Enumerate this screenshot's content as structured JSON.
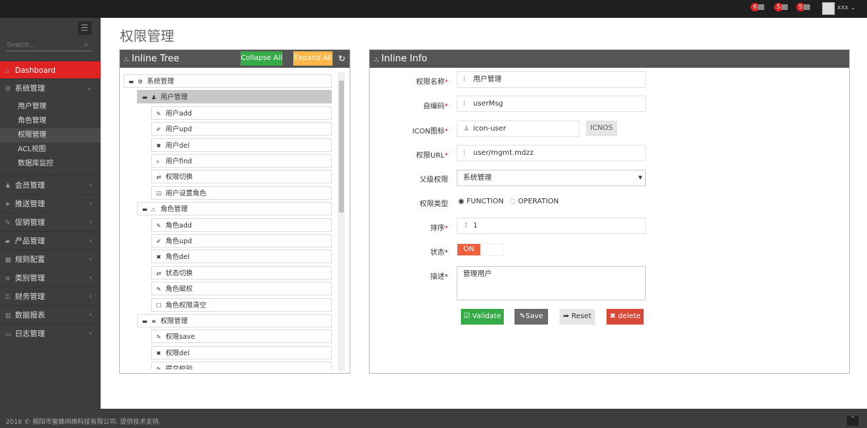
{
  "topbar": {
    "badges": [
      "6",
      "5",
      "5"
    ],
    "user": "xxx",
    "colors": {
      "badge": "#e02222"
    }
  },
  "sidebar": {
    "search_placeholder": "Search...",
    "active": "Dashboard",
    "items": [
      {
        "label": "Dashboard",
        "icon": "home-icon"
      },
      {
        "label": "系统管理",
        "icon": "cogs-icon",
        "expanded": true,
        "children": [
          "用户管理",
          "角色管理",
          "权限管理",
          "ACL视图",
          "数据库监控"
        ],
        "selected_child": "权限管理"
      },
      {
        "label": "会员管理",
        "icon": "user-icon"
      },
      {
        "label": "推送管理",
        "icon": "send-icon"
      },
      {
        "label": "促销管理",
        "icon": "tag-icon"
      },
      {
        "label": "产品管理",
        "icon": "folder-icon"
      },
      {
        "label": "规则配置",
        "icon": "table-icon"
      },
      {
        "label": "类别管理",
        "icon": "list-icon"
      },
      {
        "label": "财务管理",
        "icon": "key-icon"
      },
      {
        "label": "数据报表",
        "icon": "chart-icon"
      },
      {
        "label": "日志管理",
        "icon": "card-icon"
      }
    ]
  },
  "page_title": "权限管理",
  "tree_panel": {
    "title": "Inline Tree",
    "collapse_label": "Collapse All",
    "expand_label": "Expand All",
    "nodes": [
      {
        "label": "系统管理",
        "level": 0,
        "icon": "cogs-icon",
        "toggle": "−"
      },
      {
        "label": "用户管理",
        "level": 1,
        "icon": "user-icon",
        "toggle": "−",
        "selected": true
      },
      {
        "label": "用户add",
        "level": 2,
        "icon": "pencil-icon"
      },
      {
        "label": "用户upd",
        "level": 2,
        "icon": "edit-icon"
      },
      {
        "label": "用户del",
        "level": 2,
        "icon": "times-icon"
      },
      {
        "label": "用户find",
        "level": 2,
        "icon": "search-icon"
      },
      {
        "label": "权限切换",
        "level": 2,
        "icon": "retweet-icon"
      },
      {
        "label": "用户设置角色",
        "level": 2,
        "icon": "check-square-icon"
      },
      {
        "label": "角色管理",
        "level": 1,
        "icon": "sitemap-icon",
        "toggle": "−"
      },
      {
        "label": "角色add",
        "level": 2,
        "icon": "pencil-icon"
      },
      {
        "label": "角色upd",
        "level": 2,
        "icon": "edit-icon"
      },
      {
        "label": "角色del",
        "level": 2,
        "icon": "times-icon"
      },
      {
        "label": "状态切换",
        "level": 2,
        "icon": "retweet-icon"
      },
      {
        "label": "角色赋权",
        "level": 2,
        "icon": "pencil-icon"
      },
      {
        "label": "角色权限清空",
        "level": 2,
        "icon": "square-icon"
      },
      {
        "label": "权限管理",
        "level": 1,
        "icon": "list-icon",
        "toggle": "−"
      },
      {
        "label": "权限save",
        "level": 2,
        "icon": "pencil-icon"
      },
      {
        "label": "权限del",
        "level": 2,
        "icon": "times-icon"
      },
      {
        "label": "提交校验",
        "level": 2,
        "icon": "pencil-icon"
      }
    ]
  },
  "info_panel": {
    "title": "Inline Info",
    "fields": {
      "name": {
        "label": "权限名称",
        "value": "用户管理"
      },
      "code": {
        "label": "自编码",
        "value": "userMsg"
      },
      "icon": {
        "label": "ICON图标",
        "value": "icon-user",
        "button": "ICNOS"
      },
      "url": {
        "label": "权限URL",
        "value": "user/mgmt.mdzz"
      },
      "parent": {
        "label": "父级权限",
        "value": "系统管理"
      },
      "type": {
        "label": "权限类型",
        "options": [
          "FUNCTION",
          "OPERATION"
        ],
        "selected": "FUNCTION"
      },
      "order": {
        "label": "排序",
        "value": "1"
      },
      "status": {
        "label": "状态",
        "value": "ON"
      },
      "desc": {
        "label": "描述",
        "value": "管理用户"
      }
    },
    "buttons": {
      "validate": "Validate",
      "save": "Save",
      "reset": "Reset",
      "delete": "delete"
    }
  },
  "footer": {
    "text": "2016 © 揭阳市蜜蜂网络科技有限公司. 提供技术支持."
  }
}
